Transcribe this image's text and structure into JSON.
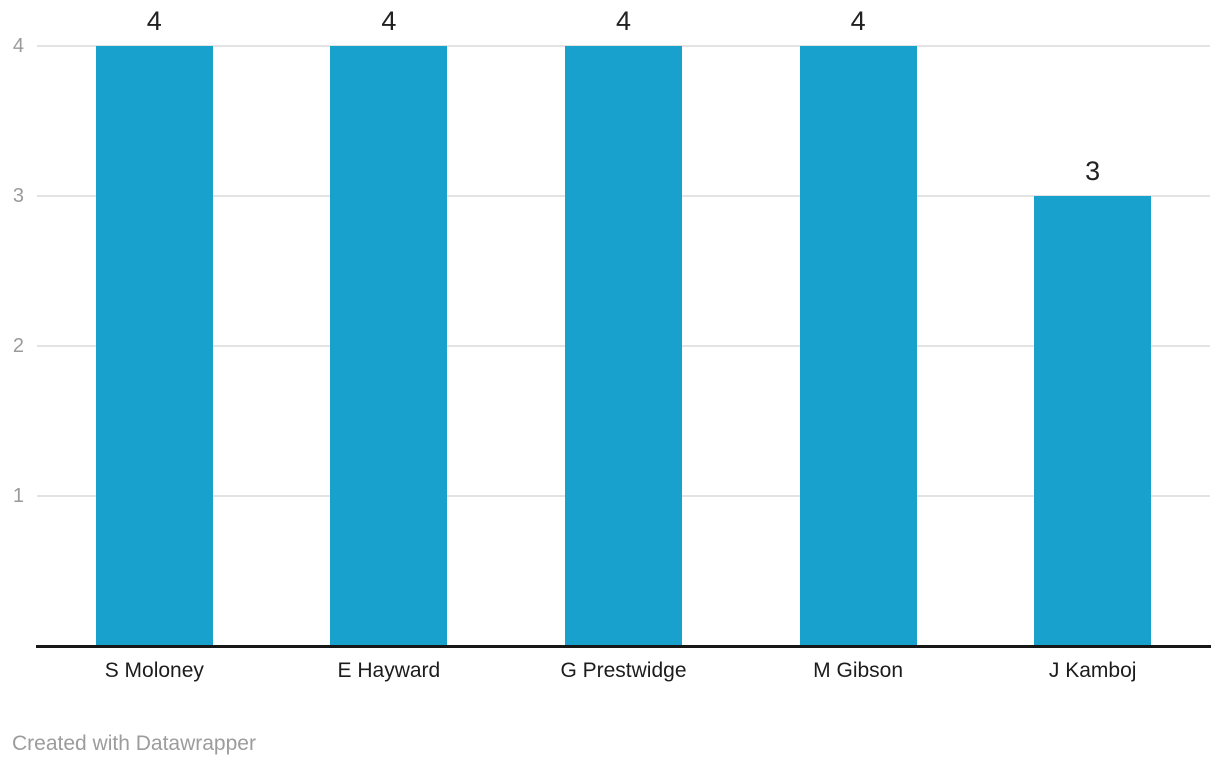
{
  "chart_data": {
    "type": "bar",
    "categories": [
      "S Moloney",
      "E Hayward",
      "G Prestwidge",
      "M Gibson",
      "J Kamboj"
    ],
    "values": [
      4,
      4,
      4,
      4,
      3
    ],
    "value_labels": [
      "4",
      "4",
      "4",
      "4",
      "3"
    ],
    "title": "",
    "xlabel": "",
    "ylabel": "",
    "ylim": [
      0,
      4
    ],
    "yticks": [
      1,
      2,
      3,
      4
    ],
    "grid": true,
    "legend": false,
    "bar_color": "#18a1cd"
  },
  "colors": {
    "background": "#ffffff",
    "bar": "#18a1cd",
    "gridline": "#e3e3e3",
    "axis_line": "#171717",
    "tick_label": "#9a9a9a",
    "value_label": "#212121",
    "category_label": "#1c1c1c",
    "footer": "#9c9c9c"
  },
  "footer": {
    "credit": "Created with Datawrapper"
  }
}
